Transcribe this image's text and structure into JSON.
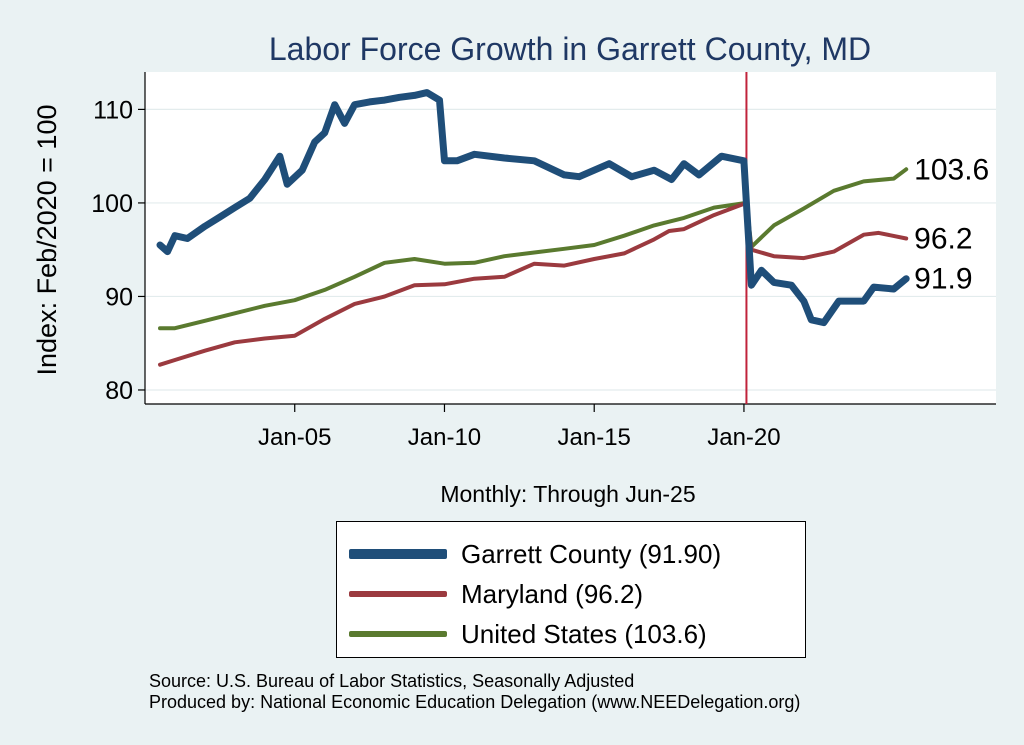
{
  "chart_data": {
    "type": "line",
    "title": "Labor Force Growth in Garrett  County, MD",
    "ylabel": "Index: Feb/2020 = 100",
    "xlabel": "Monthly: Through Jun-25",
    "ylim": [
      78.5,
      114
    ],
    "xlim": [
      "2000-01",
      "2028-06"
    ],
    "yticks": [
      80,
      90,
      100,
      110
    ],
    "xticks": [
      {
        "label": "Jan-05",
        "date": "2005-01"
      },
      {
        "label": "Jan-10",
        "date": "2010-01"
      },
      {
        "label": "Jan-15",
        "date": "2015-01"
      },
      {
        "label": "Jan-20",
        "date": "2020-01"
      }
    ],
    "grid": "horizontal",
    "vline": {
      "date": "2020-02",
      "color": "#c0233b"
    },
    "series": [
      {
        "name": "Garrett  County (91.90)",
        "color": "#1f4e79",
        "end_label": "91.9",
        "points": [
          [
            "2000-07",
            95.5
          ],
          [
            "2000-10",
            94.8
          ],
          [
            "2001-01",
            96.5
          ],
          [
            "2001-06",
            96.2
          ],
          [
            "2002-01",
            97.5
          ],
          [
            "2002-07",
            98.5
          ],
          [
            "2003-01",
            99.5
          ],
          [
            "2003-07",
            100.5
          ],
          [
            "2004-01",
            102.5
          ],
          [
            "2004-07",
            105.0
          ],
          [
            "2004-10",
            102.0
          ],
          [
            "2005-04",
            103.5
          ],
          [
            "2005-09",
            106.5
          ],
          [
            "2006-01",
            107.5
          ],
          [
            "2006-05",
            110.5
          ],
          [
            "2006-09",
            108.5
          ],
          [
            "2007-01",
            110.5
          ],
          [
            "2007-07",
            110.8
          ],
          [
            "2008-01",
            111.0
          ],
          [
            "2008-07",
            111.3
          ],
          [
            "2009-01",
            111.5
          ],
          [
            "2009-06",
            111.8
          ],
          [
            "2009-11",
            111.0
          ],
          [
            "2010-01",
            104.5
          ],
          [
            "2010-06",
            104.5
          ],
          [
            "2011-01",
            105.2
          ],
          [
            "2012-01",
            104.8
          ],
          [
            "2013-01",
            104.5
          ],
          [
            "2014-01",
            103.0
          ],
          [
            "2014-07",
            102.8
          ],
          [
            "2015-07",
            104.2
          ],
          [
            "2016-04",
            102.8
          ],
          [
            "2017-01",
            103.5
          ],
          [
            "2017-08",
            102.5
          ],
          [
            "2018-01",
            104.2
          ],
          [
            "2018-07",
            103.0
          ],
          [
            "2019-04",
            105.0
          ],
          [
            "2020-01",
            104.5
          ],
          [
            "2020-02",
            100.0
          ],
          [
            "2020-04",
            91.2
          ],
          [
            "2020-08",
            92.8
          ],
          [
            "2021-01",
            91.5
          ],
          [
            "2021-08",
            91.2
          ],
          [
            "2022-01",
            89.5
          ],
          [
            "2022-04",
            87.5
          ],
          [
            "2022-09",
            87.2
          ],
          [
            "2023-03",
            89.5
          ],
          [
            "2024-01",
            89.5
          ],
          [
            "2024-05",
            91.0
          ],
          [
            "2025-01",
            90.8
          ],
          [
            "2025-06",
            91.9
          ]
        ]
      },
      {
        "name": "Maryland (96.2)",
        "color": "#9b3a3f",
        "end_label": "96.2",
        "points": [
          [
            "2000-07",
            82.7
          ],
          [
            "2001-01",
            83.2
          ],
          [
            "2002-01",
            84.2
          ],
          [
            "2003-01",
            85.1
          ],
          [
            "2004-01",
            85.5
          ],
          [
            "2005-01",
            85.8
          ],
          [
            "2006-01",
            87.6
          ],
          [
            "2007-01",
            89.2
          ],
          [
            "2008-01",
            90.0
          ],
          [
            "2009-01",
            91.2
          ],
          [
            "2010-01",
            91.3
          ],
          [
            "2011-01",
            91.9
          ],
          [
            "2012-01",
            92.1
          ],
          [
            "2013-01",
            93.5
          ],
          [
            "2014-01",
            93.3
          ],
          [
            "2015-01",
            94.0
          ],
          [
            "2016-01",
            94.6
          ],
          [
            "2017-01",
            96.1
          ],
          [
            "2017-07",
            97.0
          ],
          [
            "2018-01",
            97.2
          ],
          [
            "2019-01",
            98.7
          ],
          [
            "2020-02",
            100.0
          ],
          [
            "2020-04",
            95.0
          ],
          [
            "2021-01",
            94.3
          ],
          [
            "2022-01",
            94.1
          ],
          [
            "2023-01",
            94.8
          ],
          [
            "2024-01",
            96.6
          ],
          [
            "2024-07",
            96.8
          ],
          [
            "2025-06",
            96.2
          ]
        ]
      },
      {
        "name": "United States (103.6)",
        "color": "#5a7a2f",
        "end_label": "103.6",
        "points": [
          [
            "2000-07",
            86.6
          ],
          [
            "2001-01",
            86.6
          ],
          [
            "2002-01",
            87.4
          ],
          [
            "2003-01",
            88.2
          ],
          [
            "2004-01",
            89.0
          ],
          [
            "2005-01",
            89.6
          ],
          [
            "2006-01",
            90.7
          ],
          [
            "2007-01",
            92.1
          ],
          [
            "2008-01",
            93.6
          ],
          [
            "2009-01",
            94.0
          ],
          [
            "2010-01",
            93.5
          ],
          [
            "2011-01",
            93.6
          ],
          [
            "2012-01",
            94.3
          ],
          [
            "2013-01",
            94.7
          ],
          [
            "2014-01",
            95.1
          ],
          [
            "2015-01",
            95.5
          ],
          [
            "2016-01",
            96.5
          ],
          [
            "2017-01",
            97.6
          ],
          [
            "2018-01",
            98.4
          ],
          [
            "2019-01",
            99.5
          ],
          [
            "2020-02",
            100.0
          ],
          [
            "2020-04",
            95.3
          ],
          [
            "2021-01",
            97.6
          ],
          [
            "2022-01",
            99.4
          ],
          [
            "2023-01",
            101.3
          ],
          [
            "2024-01",
            102.3
          ],
          [
            "2025-01",
            102.6
          ],
          [
            "2025-06",
            103.6
          ]
        ]
      }
    ],
    "legend": {
      "position": "bottom",
      "items": [
        {
          "label": "Garrett  County (91.90)",
          "color": "#1f4e79"
        },
        {
          "label": "Maryland (96.2)",
          "color": "#9b3a3f"
        },
        {
          "label": "United States (103.6)",
          "color": "#5a7a2f"
        }
      ]
    }
  },
  "source_lines": [
    "Source: U.S. Bureau of Labor Statistics, Seasonally Adjusted",
    "Produced by: National Economic Education Delegation (www.NEEDelegation.org)"
  ]
}
